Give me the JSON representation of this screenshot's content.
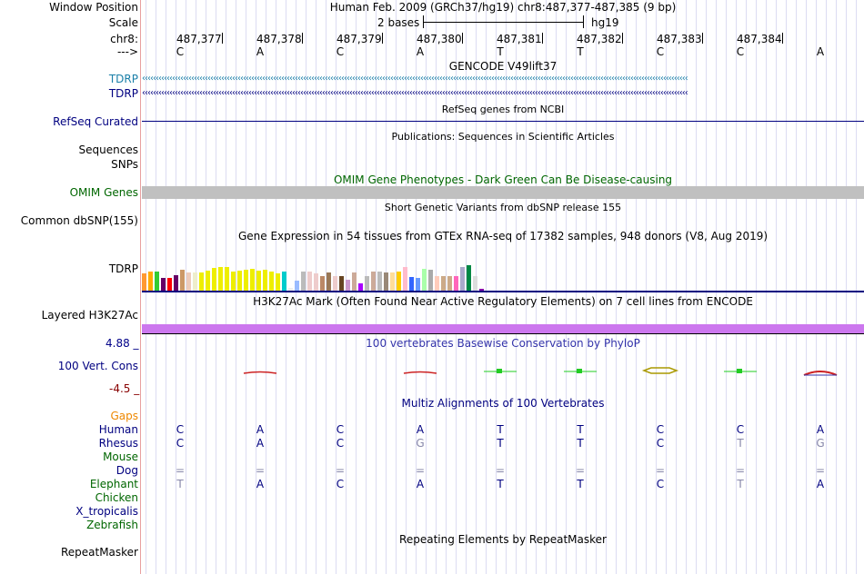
{
  "header": {
    "window_position_label": "Window Position",
    "window_position": "Human Feb. 2009 (GRCh37/hg19)   chr8:487,377-487,385 (9 bp)",
    "scale_label": "Scale",
    "scale_bar_text": "2 bases",
    "assembly": "hg19",
    "chr_label": "chr8:",
    "strand_label": "--->"
  },
  "ruler": {
    "positions": [
      "487,377",
      "487,378",
      "487,379",
      "487,380",
      "487,381",
      "487,382",
      "487,383",
      "487,384"
    ],
    "bases": [
      "C",
      "A",
      "C",
      "A",
      "T",
      "T",
      "C",
      "C",
      "A"
    ]
  },
  "tracks": {
    "gencode_title": "GENCODE V49lift37",
    "tdrp_1": "TDRP",
    "tdrp_2": "TDRP",
    "refseq_title": "RefSeq genes from NCBI",
    "refseq_label": "RefSeq Curated",
    "publications_title": "Publications: Sequences in Scientific Articles",
    "sequences_label": "Sequences",
    "snps_label": "SNPs",
    "omim_title": "OMIM Gene Phenotypes - Dark Green Can Be Disease-causing",
    "omim_label": "OMIM Genes",
    "dbsnp_title": "Short Genetic Variants from dbSNP release 155",
    "dbsnp_label": "Common dbSNP(155)",
    "gtex_title": "Gene Expression in 54 tissues from GTEx RNA-seq of 17382 samples, 948 donors (V8, Aug 2019)",
    "gtex_label": "TDRP",
    "h3k27_title": "H3K27Ac Mark (Often Found Near Active Regulatory Elements) on 7 cell lines from ENCODE",
    "h3k27_label": "Layered H3K27Ac",
    "phylop_title": "100 vertebrates Basewise Conservation by PhyloP",
    "phylop_label": "100 Vert. Cons",
    "phylop_max": "4.88 _",
    "phylop_min": "-4.5 _",
    "multiz_title": "Multiz Alignments of 100 Vertebrates",
    "repeat_title": "Repeating Elements by RepeatMasker",
    "repeat_label": "RepeatMasker"
  },
  "gtex_expression": [
    {
      "c": "#ff9933",
      "v": 0.36
    },
    {
      "c": "#ffaa00",
      "v": 0.4
    },
    {
      "c": "#33cc33",
      "v": 0.4
    },
    {
      "c": "#660066",
      "v": 0.26
    },
    {
      "c": "#ff0000",
      "v": 0.26
    },
    {
      "c": "#660066",
      "v": 0.32
    },
    {
      "c": "#cc9966",
      "v": 0.44
    },
    {
      "c": "#eeccbb",
      "v": 0.38
    },
    {
      "c": "#eeeecc",
      "v": 0.38
    },
    {
      "c": "#eeee00",
      "v": 0.38
    },
    {
      "c": "#eeee00",
      "v": 0.42
    },
    {
      "c": "#eeee00",
      "v": 0.48
    },
    {
      "c": "#eeee00",
      "v": 0.5
    },
    {
      "c": "#eeee00",
      "v": 0.5
    },
    {
      "c": "#eeee00",
      "v": 0.4
    },
    {
      "c": "#eeee00",
      "v": 0.42
    },
    {
      "c": "#eeee00",
      "v": 0.44
    },
    {
      "c": "#eeee00",
      "v": 0.46
    },
    {
      "c": "#eeee00",
      "v": 0.42
    },
    {
      "c": "#eeee00",
      "v": 0.44
    },
    {
      "c": "#eeee00",
      "v": 0.4
    },
    {
      "c": "#eeee00",
      "v": 0.36
    },
    {
      "c": "#00cccc",
      "v": 0.4
    },
    {
      "c": "#eeeeee",
      "v": 0.06
    },
    {
      "c": "#99bbff",
      "v": 0.22
    },
    {
      "c": "#bbbbbb",
      "v": 0.4
    },
    {
      "c": "#eecccc",
      "v": 0.4
    },
    {
      "c": "#eecccc",
      "v": 0.36
    },
    {
      "c": "#bb8866",
      "v": 0.3
    },
    {
      "c": "#997755",
      "v": 0.38
    },
    {
      "c": "#eecccc",
      "v": 0.3
    },
    {
      "c": "#664422",
      "v": 0.3
    },
    {
      "c": "#cc99cc",
      "v": 0.24
    },
    {
      "c": "#ccaa99",
      "v": 0.38
    },
    {
      "c": "#aa00ff",
      "v": 0.16
    },
    {
      "c": "#bbbbbb",
      "v": 0.3
    },
    {
      "c": "#ccaa99",
      "v": 0.4
    },
    {
      "c": "#bbbbbb",
      "v": 0.4
    },
    {
      "c": "#998877",
      "v": 0.38
    },
    {
      "c": "#ffdd99",
      "v": 0.38
    },
    {
      "c": "#ffcc00",
      "v": 0.4
    },
    {
      "c": "#ffbbcc",
      "v": 0.5
    },
    {
      "c": "#3366ff",
      "v": 0.28
    },
    {
      "c": "#6699ff",
      "v": 0.26
    },
    {
      "c": "#aaffaa",
      "v": 0.46
    },
    {
      "c": "#aaaaaa",
      "v": 0.44
    },
    {
      "c": "#ffccbb",
      "v": 0.3
    },
    {
      "c": "#ccaa88",
      "v": 0.3
    },
    {
      "c": "#ccaa88",
      "v": 0.3
    },
    {
      "c": "#ff66bb",
      "v": 0.3
    },
    {
      "c": "#aaaacc",
      "v": 0.5
    },
    {
      "c": "#008844",
      "v": 0.54
    },
    {
      "c": "#dddddd",
      "v": 0.3
    },
    {
      "c": "#8800aa",
      "v": 0.04
    }
  ],
  "conservation": [
    {
      "color": "#cc2222",
      "shape": "dash"
    },
    {
      "color": "#cc2222",
      "shape": "dash"
    },
    {
      "color": "#22cc22",
      "shape": "square"
    },
    {
      "color": "#22cc22",
      "shape": "square"
    },
    {
      "color": "#aa9900",
      "shape": "hex"
    },
    {
      "color": "#22cc22",
      "shape": "square"
    },
    {
      "color": "#cc2222",
      "shape": "arc"
    }
  ],
  "multiz": {
    "species": [
      {
        "name": "Gaps",
        "color": "#ee8800",
        "bases": []
      },
      {
        "name": "Human",
        "color": "#000080",
        "bases": [
          "C",
          "A",
          "C",
          "A",
          "T",
          "T",
          "C",
          "C",
          "A"
        ]
      },
      {
        "name": "Rhesus",
        "color": "#000080",
        "bases": [
          "C",
          "A",
          "C",
          "G",
          "T",
          "T",
          "C",
          "T",
          "G"
        ],
        "dim": [
          3,
          7,
          8
        ]
      },
      {
        "name": "Mouse",
        "color": "#006600",
        "bases": []
      },
      {
        "name": "Dog",
        "color": "#000080",
        "bases": [
          "=",
          "=",
          "=",
          "=",
          "=",
          "=",
          "=",
          "=",
          "="
        ],
        "dim": [
          0,
          1,
          2,
          3,
          4,
          5,
          6,
          7,
          8
        ]
      },
      {
        "name": "Elephant",
        "color": "#006600",
        "bases": [
          "T",
          "A",
          "C",
          "A",
          "T",
          "T",
          "C",
          "T",
          "A"
        ],
        "dim": [
          0,
          7
        ]
      },
      {
        "name": "Chicken",
        "color": "#006600",
        "bases": []
      },
      {
        "name": "X_tropicalis",
        "color": "#000080",
        "bases": []
      },
      {
        "name": "Zebrafish",
        "color": "#006600",
        "bases": []
      }
    ]
  },
  "colors": {
    "gencode_blue": "#1a7fa8",
    "navy": "#000080",
    "omim_green": "#006600",
    "omim_bar": "#c0c0c0",
    "h3k27_purple": "#cc77ee",
    "phylop_blue": "#3333aa",
    "phylop_max_color": "#000088",
    "phylop_min_color": "#880000"
  }
}
